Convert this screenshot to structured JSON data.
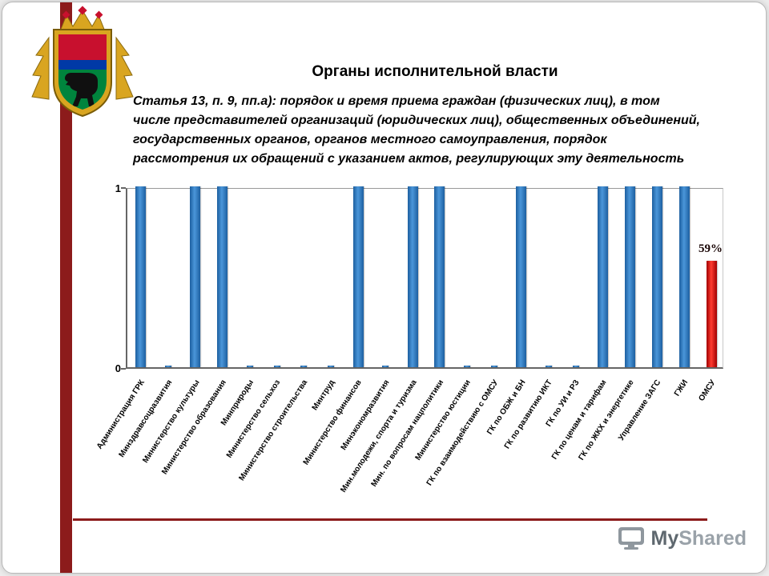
{
  "slide": {
    "title": "Органы исполнительной власти",
    "subtitle_lines": [
      "Статья 13, п. 9, пп.а): порядок и время приема граждан (физических лиц), в том",
      "числе представителей организаций (юридических лиц), общественных объединений,",
      "государственных органов, органов местного самоуправления, порядок",
      "рассмотрения их обращений с указанием актов, регулирующих эту деятельность"
    ]
  },
  "chart_data": {
    "type": "bar",
    "title": "",
    "xlabel": "",
    "ylabel": "",
    "ylim": [
      0,
      1
    ],
    "yticks": {
      "top": "1",
      "bottom": "0"
    },
    "grid": false,
    "legend": false,
    "categories": [
      "Администрация ГРК",
      "Минздравсоцразвития",
      "Министерство культуры",
      "Министерство образования",
      "Минприроды",
      "Министерство сельхоз",
      "Министерство строительства",
      "Минтруд",
      "Министерство финансов",
      "Минэкономразвития",
      "Мин.молодежи, спорта и туризма",
      "Мин. по вопросам нацполитики",
      "Министерство юстиции",
      "ГК по взаимодействию с ОМСУ",
      "ГК по ОБЖ и БН",
      "ГК по развитию ИКТ",
      "ГК по УИ и РЗ",
      "ГК по ценам и тарифам",
      "ГК по ЖКХ и энергетике",
      "Управление ЗАГС",
      "ГЖИ",
      "ОМСУ"
    ],
    "values": [
      1,
      0,
      1,
      1,
      0,
      0,
      0,
      0,
      1,
      0,
      1,
      1,
      0,
      0,
      1,
      0,
      0,
      1,
      1,
      1,
      1,
      0.59
    ],
    "red_indices": [
      21
    ],
    "annotation": {
      "label": "59%",
      "category_index": 21
    }
  },
  "watermark": {
    "my": "My",
    "shared": "Shared"
  },
  "colors": {
    "maroon": "#8c1b1b",
    "bar_blue_light": "#4a96d9",
    "bar_blue_dark": "#1d5fa0",
    "bar_red_light": "#ff3b30",
    "bar_red_dark": "#a00000",
    "emblem_gold": "#d9a520",
    "emblem_red": "#c8102e",
    "emblem_green": "#00843d"
  }
}
